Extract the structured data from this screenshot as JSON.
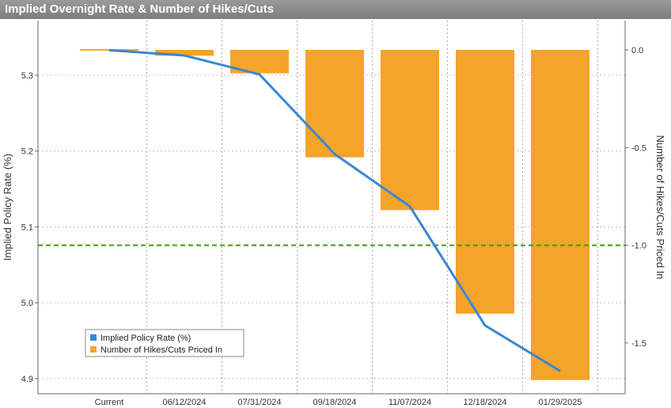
{
  "chart_data": {
    "type": "bar+line",
    "title": "Implied Overnight Rate & Number of Hikes/Cuts",
    "categories": [
      "Current",
      "06/12/2024",
      "07/31/2024",
      "09/18/2024",
      "11/07/2024",
      "12/18/2024",
      "01/29/2025"
    ],
    "series": [
      {
        "name": "Implied Policy Rate (%)",
        "type": "line",
        "axis": "left",
        "color": "#3a86d6",
        "values": [
          5.333,
          5.326,
          5.301,
          5.196,
          5.127,
          4.97,
          4.91
        ]
      },
      {
        "name": "Number of Hikes/Cuts Priced In",
        "type": "bar",
        "axis": "right",
        "color": "#f5a42a",
        "values": [
          0.0,
          -0.03,
          -0.12,
          -0.55,
          -0.82,
          -1.35,
          -1.69
        ]
      }
    ],
    "ylabel_left": "Implied Policy Rate (%)",
    "ylabel_right": "Number of Hikes/Cuts Priced In",
    "yticks_left": [
      "5.3",
      "5.2",
      "5.1",
      "5.0",
      "4.9"
    ],
    "yticks_right": [
      "0.0",
      "-0.5",
      "-1.0",
      "-1.5"
    ],
    "yticks_left_values": [
      5.3,
      5.2,
      5.1,
      5.0,
      4.9
    ],
    "yticks_right_values": [
      0.0,
      -0.5,
      -1.0,
      -1.5
    ],
    "ylim_left": [
      4.88,
      5.372
    ],
    "ylim_right": [
      -1.76,
      0.15
    ],
    "reference_line": {
      "axis": "right",
      "value": -1.0,
      "color": "#3a9a1a",
      "style": "dashed"
    },
    "grid": true,
    "legend_position": "bottom-left"
  }
}
